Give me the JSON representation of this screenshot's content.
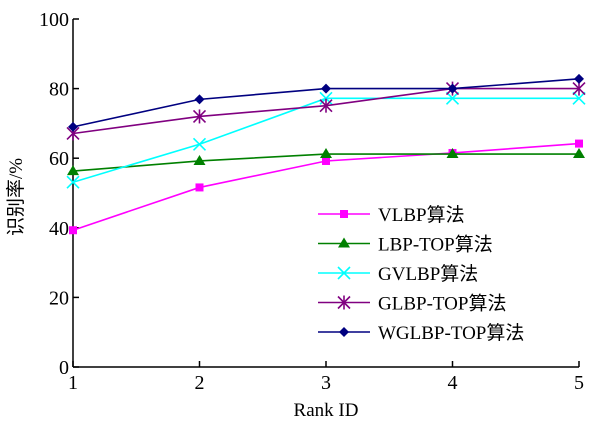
{
  "chart_data": {
    "type": "line",
    "xlabel": "Rank ID",
    "ylabel": "识别率/%",
    "x": [
      1,
      2,
      3,
      4,
      5
    ],
    "xlim": [
      1,
      5
    ],
    "ylim": [
      0,
      100
    ],
    "xticks": [
      "1",
      "2",
      "3",
      "4",
      "5"
    ],
    "yticks": [
      "0",
      "20",
      "40",
      "60",
      "80",
      "100"
    ],
    "grid": false,
    "legend_position": "lower-right",
    "series": [
      {
        "name": "VLBP算法",
        "values": [
          39.3,
          51.6,
          59.2,
          61.5,
          64.2
        ],
        "color": "#ff00ff",
        "marker": "square"
      },
      {
        "name": "LBP-TOP算法",
        "values": [
          56.3,
          59.2,
          61.2,
          61.2,
          61.2
        ],
        "color": "#008000",
        "marker": "triangle"
      },
      {
        "name": "GVLBP算法",
        "values": [
          53.1,
          64.0,
          77.2,
          77.2,
          77.2
        ],
        "color": "#00ffff",
        "marker": "x"
      },
      {
        "name": "GLBP-TOP算法",
        "values": [
          67.1,
          72.0,
          75.1,
          80.0,
          80.0
        ],
        "color": "#800080",
        "marker": "asterisk"
      },
      {
        "name": "WGLBP-TOP算法",
        "values": [
          69.0,
          76.9,
          80.0,
          80.0,
          82.8
        ],
        "color": "#000080",
        "marker": "diamond"
      }
    ]
  }
}
